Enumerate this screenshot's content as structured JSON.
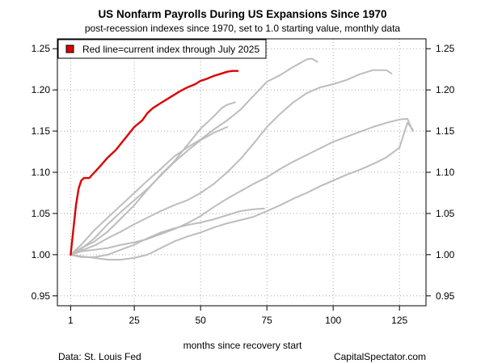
{
  "chart_data": {
    "type": "line",
    "title": "US Nonfarm Payrolls During US Expansions Since 1970",
    "subtitle": "post-recession indexes since 1970, set to 1.0 starting value, monthly data",
    "xlabel": "months since recovery start",
    "ylabel": "",
    "xlim": [
      1,
      130
    ],
    "ylim": [
      0.95,
      1.25
    ],
    "x_ticks": [
      "1",
      "25",
      "50",
      "75",
      "100",
      "125"
    ],
    "y_ticks": [
      "0.95",
      "1.00",
      "1.05",
      "1.10",
      "1.15",
      "1.20",
      "1.25"
    ],
    "grid": true,
    "legend": {
      "position": "top-left",
      "entries": [
        "Red line=current index through July 2025"
      ]
    },
    "colors": {
      "current": "#dd0000",
      "past": "#bdbdbd"
    },
    "series": [
      {
        "role": "past",
        "points": [
          [
            1,
            1.0
          ],
          [
            5,
            0.998
          ],
          [
            10,
            0.996
          ],
          [
            15,
            0.994
          ],
          [
            20,
            0.994
          ],
          [
            25,
            0.996
          ],
          [
            30,
            1.0
          ],
          [
            35,
            1.008
          ],
          [
            40,
            1.016
          ],
          [
            45,
            1.022
          ],
          [
            50,
            1.027
          ],
          [
            55,
            1.033
          ],
          [
            60,
            1.038
          ],
          [
            65,
            1.042
          ],
          [
            70,
            1.046
          ],
          [
            75,
            1.053
          ],
          [
            80,
            1.06
          ],
          [
            85,
            1.068
          ],
          [
            90,
            1.075
          ],
          [
            95,
            1.083
          ],
          [
            100,
            1.09
          ],
          [
            105,
            1.097
          ],
          [
            110,
            1.103
          ],
          [
            115,
            1.11
          ],
          [
            120,
            1.118
          ],
          [
            125,
            1.13
          ],
          [
            128,
            1.16
          ],
          [
            130,
            1.152
          ]
        ]
      },
      {
        "role": "past",
        "points": [
          [
            1,
            1.0
          ],
          [
            5,
            0.997
          ],
          [
            10,
            0.997
          ],
          [
            15,
            1.0
          ],
          [
            20,
            1.006
          ],
          [
            25,
            1.012
          ],
          [
            30,
            1.02
          ],
          [
            35,
            1.027
          ],
          [
            40,
            1.032
          ],
          [
            45,
            1.036
          ],
          [
            50,
            1.039
          ],
          [
            55,
            1.043
          ],
          [
            60,
            1.048
          ],
          [
            65,
            1.053
          ],
          [
            70,
            1.055
          ],
          [
            74,
            1.056
          ]
        ]
      },
      {
        "role": "past",
        "points": [
          [
            1,
            1.0
          ],
          [
            5,
            1.004
          ],
          [
            10,
            1.006
          ],
          [
            15,
            1.008
          ],
          [
            20,
            1.012
          ],
          [
            25,
            1.015
          ],
          [
            30,
            1.019
          ],
          [
            35,
            1.025
          ],
          [
            40,
            1.031
          ],
          [
            45,
            1.038
          ],
          [
            50,
            1.047
          ],
          [
            55,
            1.058
          ],
          [
            60,
            1.068
          ],
          [
            65,
            1.077
          ],
          [
            70,
            1.086
          ],
          [
            75,
            1.094
          ],
          [
            80,
            1.104
          ],
          [
            85,
            1.113
          ],
          [
            90,
            1.121
          ],
          [
            95,
            1.129
          ],
          [
            100,
            1.137
          ],
          [
            105,
            1.143
          ],
          [
            110,
            1.149
          ],
          [
            115,
            1.155
          ],
          [
            120,
            1.16
          ],
          [
            125,
            1.164
          ],
          [
            128,
            1.165
          ],
          [
            130,
            1.15
          ]
        ]
      },
      {
        "role": "past",
        "points": [
          [
            1,
            1.0
          ],
          [
            5,
            1.008
          ],
          [
            10,
            1.016
          ],
          [
            15,
            1.028
          ],
          [
            20,
            1.044
          ],
          [
            25,
            1.06
          ],
          [
            30,
            1.079
          ],
          [
            35,
            1.097
          ],
          [
            40,
            1.113
          ],
          [
            45,
            1.133
          ],
          [
            50,
            1.153
          ],
          [
            55,
            1.168
          ],
          [
            58,
            1.178
          ],
          [
            60,
            1.182
          ],
          [
            63,
            1.185
          ]
        ]
      },
      {
        "role": "past",
        "points": [
          [
            1,
            1.0
          ],
          [
            5,
            1.005
          ],
          [
            10,
            1.011
          ],
          [
            15,
            1.02
          ],
          [
            20,
            1.028
          ],
          [
            25,
            1.037
          ],
          [
            30,
            1.045
          ],
          [
            35,
            1.053
          ],
          [
            40,
            1.06
          ],
          [
            45,
            1.066
          ],
          [
            50,
            1.075
          ],
          [
            55,
            1.086
          ],
          [
            60,
            1.1
          ],
          [
            65,
            1.116
          ],
          [
            70,
            1.135
          ],
          [
            75,
            1.155
          ],
          [
            80,
            1.171
          ],
          [
            85,
            1.185
          ],
          [
            90,
            1.196
          ],
          [
            95,
            1.203
          ],
          [
            100,
            1.207
          ],
          [
            105,
            1.212
          ],
          [
            110,
            1.219
          ],
          [
            115,
            1.224
          ],
          [
            120,
            1.224
          ],
          [
            122,
            1.22
          ]
        ]
      },
      {
        "role": "past",
        "points": [
          [
            1,
            1.0
          ],
          [
            5,
            1.012
          ],
          [
            10,
            1.03
          ],
          [
            15,
            1.045
          ],
          [
            20,
            1.06
          ],
          [
            25,
            1.075
          ],
          [
            30,
            1.09
          ],
          [
            35,
            1.104
          ],
          [
            40,
            1.119
          ],
          [
            45,
            1.13
          ],
          [
            50,
            1.14
          ],
          [
            55,
            1.152
          ],
          [
            60,
            1.163
          ],
          [
            65,
            1.176
          ],
          [
            70,
            1.193
          ],
          [
            75,
            1.21
          ],
          [
            80,
            1.218
          ],
          [
            85,
            1.228
          ],
          [
            90,
            1.237
          ],
          [
            92,
            1.238
          ],
          [
            94,
            1.234
          ]
        ]
      },
      {
        "role": "past",
        "points": [
          [
            1,
            1.0
          ],
          [
            5,
            1.007
          ],
          [
            10,
            1.02
          ],
          [
            15,
            1.037
          ],
          [
            20,
            1.052
          ],
          [
            25,
            1.066
          ],
          [
            30,
            1.08
          ],
          [
            35,
            1.096
          ],
          [
            40,
            1.112
          ],
          [
            45,
            1.126
          ],
          [
            50,
            1.139
          ],
          [
            55,
            1.148
          ],
          [
            60,
            1.155
          ]
        ]
      },
      {
        "role": "current",
        "points": [
          [
            1,
            1.0
          ],
          [
            2,
            1.03
          ],
          [
            3,
            1.06
          ],
          [
            4,
            1.08
          ],
          [
            5,
            1.09
          ],
          [
            6,
            1.093
          ],
          [
            8,
            1.093
          ],
          [
            10,
            1.1
          ],
          [
            12,
            1.107
          ],
          [
            15,
            1.118
          ],
          [
            18,
            1.127
          ],
          [
            20,
            1.135
          ],
          [
            22,
            1.143
          ],
          [
            25,
            1.155
          ],
          [
            28,
            1.163
          ],
          [
            30,
            1.172
          ],
          [
            32,
            1.178
          ],
          [
            35,
            1.184
          ],
          [
            38,
            1.19
          ],
          [
            40,
            1.194
          ],
          [
            42,
            1.198
          ],
          [
            45,
            1.203
          ],
          [
            48,
            1.207
          ],
          [
            50,
            1.211
          ],
          [
            52,
            1.213
          ],
          [
            55,
            1.217
          ],
          [
            58,
            1.22
          ],
          [
            60,
            1.222
          ],
          [
            62,
            1.223
          ],
          [
            64,
            1.223
          ]
        ]
      }
    ]
  },
  "footer": {
    "source": "Data: St. Louis Fed",
    "credit": "CapitalSpectator.com"
  }
}
